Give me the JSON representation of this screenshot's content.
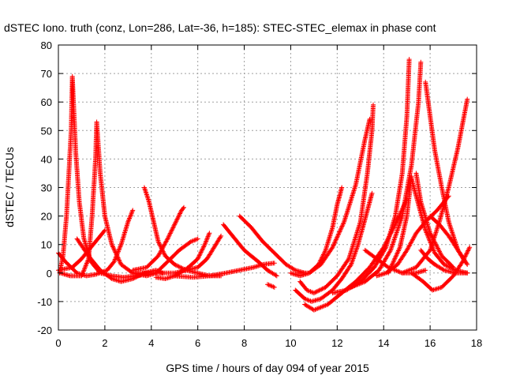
{
  "chart_data": {
    "type": "scatter",
    "title": "dSTEC Iono. truth (conz, Lon=286, Lat=-36, h=185): STEC-STEC_elemax in phase cont",
    "xlabel": "GPS time / hours of day 094 of year 2015",
    "ylabel": "dSTEC  / TECUs",
    "xlim": [
      0,
      18
    ],
    "ylim": [
      -20,
      80
    ],
    "xticks": [
      0,
      2,
      4,
      6,
      8,
      10,
      12,
      14,
      16,
      18
    ],
    "yticks": [
      -20,
      -10,
      0,
      10,
      20,
      30,
      40,
      50,
      60,
      70,
      80
    ],
    "grid": true,
    "marker": "+",
    "color": "#ff0000",
    "series": [
      {
        "points": [
          [
            0.0,
            7
          ],
          [
            0.3,
            4
          ],
          [
            0.8,
            0
          ],
          [
            1.2,
            -1
          ],
          [
            1.6,
            -0.5
          ],
          [
            2.1,
            1
          ],
          [
            2.4,
            4
          ],
          [
            2.7,
            10
          ],
          [
            3.0,
            18
          ],
          [
            3.2,
            22
          ]
        ]
      },
      {
        "points": [
          [
            0.05,
            0
          ],
          [
            0.2,
            6
          ],
          [
            0.35,
            20
          ],
          [
            0.45,
            35
          ],
          [
            0.55,
            50
          ],
          [
            0.6,
            69
          ],
          [
            0.65,
            60
          ],
          [
            0.75,
            42
          ],
          [
            0.9,
            25
          ],
          [
            1.1,
            12
          ],
          [
            1.4,
            4
          ],
          [
            1.8,
            0
          ],
          [
            2.3,
            -1
          ],
          [
            2.8,
            -1.5
          ],
          [
            3.3,
            -1
          ],
          [
            3.8,
            -0.5
          ]
        ]
      },
      {
        "points": [
          [
            0.1,
            0
          ],
          [
            0.5,
            -1
          ],
          [
            1.0,
            -1
          ],
          [
            1.3,
            5
          ],
          [
            1.45,
            20
          ],
          [
            1.6,
            40
          ],
          [
            1.65,
            53
          ],
          [
            1.8,
            35
          ],
          [
            2.0,
            20
          ],
          [
            2.3,
            10
          ],
          [
            2.7,
            3
          ],
          [
            3.2,
            0
          ],
          [
            3.8,
            -1
          ],
          [
            4.2,
            0
          ]
        ]
      },
      {
        "points": [
          [
            0.0,
            1
          ],
          [
            0.6,
            2
          ],
          [
            1.0,
            5
          ],
          [
            1.4,
            9
          ],
          [
            1.8,
            13
          ],
          [
            2.0,
            15
          ]
        ]
      },
      {
        "points": [
          [
            0.8,
            12
          ],
          [
            1.3,
            6
          ],
          [
            1.8,
            1
          ],
          [
            2.3,
            -2
          ],
          [
            2.7,
            -3
          ],
          [
            3.2,
            -2
          ],
          [
            3.7,
            0
          ],
          [
            4.2,
            1
          ],
          [
            4.5,
            0
          ]
        ]
      },
      {
        "points": [
          [
            3.7,
            30
          ],
          [
            3.9,
            25
          ],
          [
            4.1,
            18
          ],
          [
            4.3,
            11
          ],
          [
            4.6,
            6
          ],
          [
            5.0,
            3
          ],
          [
            5.5,
            1
          ],
          [
            6.0,
            0
          ],
          [
            6.5,
            -1
          ],
          [
            7.0,
            -1
          ]
        ]
      },
      {
        "points": [
          [
            3.2,
            1
          ],
          [
            3.8,
            2
          ],
          [
            4.3,
            6
          ],
          [
            4.7,
            12
          ],
          [
            5.0,
            17
          ],
          [
            5.3,
            22
          ],
          [
            5.4,
            23
          ]
        ]
      },
      {
        "points": [
          [
            3.3,
            0
          ],
          [
            4.2,
            0
          ],
          [
            4.7,
            4
          ],
          [
            5.2,
            8
          ],
          [
            5.7,
            11
          ],
          [
            6.0,
            12
          ]
        ]
      },
      {
        "points": [
          [
            6.5,
            14
          ],
          [
            6.3,
            10
          ],
          [
            6.0,
            5
          ],
          [
            5.6,
            2
          ],
          [
            5.0,
            -1
          ],
          [
            4.6,
            -2
          ],
          [
            4.2,
            -1.5
          ]
        ]
      },
      {
        "points": [
          [
            4.2,
            0
          ],
          [
            5.0,
            0
          ],
          [
            5.5,
            1
          ],
          [
            6.0,
            2
          ],
          [
            6.4,
            5
          ],
          [
            6.7,
            9
          ],
          [
            7.0,
            13
          ]
        ]
      },
      {
        "points": [
          [
            5.0,
            -1
          ],
          [
            5.8,
            -1.5
          ],
          [
            6.5,
            -1
          ],
          [
            7.2,
            0
          ],
          [
            7.8,
            1
          ],
          [
            8.4,
            2
          ],
          [
            8.8,
            3
          ],
          [
            9.3,
            3.5
          ]
        ]
      },
      {
        "points": [
          [
            7.1,
            17
          ],
          [
            7.5,
            13
          ],
          [
            8.0,
            8
          ],
          [
            8.6,
            4
          ],
          [
            9.0,
            1
          ],
          [
            9.4,
            -1
          ]
        ]
      },
      {
        "points": [
          [
            7.8,
            20
          ],
          [
            8.3,
            16
          ],
          [
            8.8,
            11
          ],
          [
            9.3,
            7
          ],
          [
            9.8,
            3
          ],
          [
            10.2,
            1
          ],
          [
            10.6,
            0
          ]
        ]
      },
      {
        "points": [
          [
            9.0,
            -4
          ],
          [
            9.3,
            -5
          ]
        ]
      },
      {
        "points": [
          [
            10.0,
            0
          ],
          [
            10.4,
            -1
          ],
          [
            10.8,
            0
          ],
          [
            11.2,
            3
          ],
          [
            11.5,
            8
          ],
          [
            11.8,
            16
          ],
          [
            12.0,
            24
          ],
          [
            12.2,
            30
          ]
        ]
      },
      {
        "points": [
          [
            10.2,
            -6
          ],
          [
            10.6,
            -9
          ],
          [
            10.9,
            -10
          ],
          [
            11.3,
            -9
          ],
          [
            11.8,
            -6
          ],
          [
            12.2,
            -2
          ],
          [
            12.6,
            3
          ],
          [
            12.9,
            10
          ],
          [
            13.2,
            19
          ],
          [
            13.5,
            28
          ]
        ]
      },
      {
        "points": [
          [
            10.4,
            -3
          ],
          [
            10.7,
            -6
          ],
          [
            11.0,
            -7
          ],
          [
            11.5,
            -5
          ],
          [
            12.0,
            -1
          ],
          [
            12.5,
            5
          ],
          [
            13.0,
            18
          ],
          [
            13.3,
            35
          ],
          [
            13.5,
            50
          ],
          [
            13.55,
            59
          ]
        ]
      },
      {
        "points": [
          [
            10.3,
            0
          ],
          [
            10.8,
            0
          ],
          [
            11.3,
            3
          ],
          [
            11.8,
            9
          ],
          [
            12.3,
            18
          ],
          [
            12.8,
            31
          ],
          [
            13.2,
            47
          ],
          [
            13.4,
            54
          ]
        ]
      },
      {
        "points": [
          [
            10.6,
            -11
          ],
          [
            11.0,
            -13
          ],
          [
            11.6,
            -11
          ],
          [
            12.2,
            -7
          ],
          [
            12.8,
            -3
          ],
          [
            13.4,
            2
          ],
          [
            14.0,
            9
          ],
          [
            14.5,
            17
          ],
          [
            15.0,
            26
          ]
        ]
      },
      {
        "points": [
          [
            11.8,
            -7
          ],
          [
            12.4,
            -6
          ],
          [
            13.0,
            -3
          ],
          [
            13.6,
            2
          ],
          [
            14.1,
            9
          ],
          [
            14.5,
            20
          ],
          [
            14.8,
            35
          ],
          [
            15.0,
            55
          ],
          [
            15.1,
            75
          ]
        ]
      },
      {
        "points": [
          [
            12.6,
            -5
          ],
          [
            13.2,
            -3
          ],
          [
            13.8,
            1
          ],
          [
            14.3,
            8
          ],
          [
            14.8,
            20
          ],
          [
            15.2,
            38
          ],
          [
            15.5,
            60
          ],
          [
            15.6,
            74
          ]
        ]
      },
      {
        "points": [
          [
            13.2,
            8
          ],
          [
            13.7,
            5
          ],
          [
            14.2,
            2
          ],
          [
            14.8,
            0
          ],
          [
            15.4,
            0
          ],
          [
            15.8,
            1
          ]
        ]
      },
      {
        "points": [
          [
            15.2,
            0
          ],
          [
            15.7,
            -3
          ],
          [
            16.1,
            -6
          ],
          [
            16.5,
            -5
          ],
          [
            17.0,
            -1
          ],
          [
            17.4,
            4
          ],
          [
            17.7,
            9
          ]
        ]
      },
      {
        "points": [
          [
            14.2,
            0
          ],
          [
            14.7,
            9
          ],
          [
            15.0,
            20
          ],
          [
            15.2,
            34
          ]
        ]
      },
      {
        "points": [
          [
            15.2,
            33
          ],
          [
            15.5,
            24
          ],
          [
            15.8,
            15
          ],
          [
            16.2,
            7
          ],
          [
            16.6,
            3
          ],
          [
            17.1,
            1
          ],
          [
            17.6,
            0
          ]
        ]
      },
      {
        "points": [
          [
            15.4,
            35
          ],
          [
            15.6,
            25
          ],
          [
            16.0,
            14
          ],
          [
            16.5,
            6
          ],
          [
            17.0,
            2
          ]
        ]
      },
      {
        "points": [
          [
            15.8,
            67
          ],
          [
            16.0,
            55
          ],
          [
            16.2,
            43
          ],
          [
            16.5,
            30
          ],
          [
            16.8,
            18
          ],
          [
            17.2,
            8
          ],
          [
            17.6,
            3
          ]
        ]
      },
      {
        "points": [
          [
            16.0,
            20
          ],
          [
            16.4,
            17
          ],
          [
            16.8,
            13
          ],
          [
            17.2,
            8
          ],
          [
            17.5,
            4
          ]
        ]
      },
      {
        "points": [
          [
            15.6,
            8
          ],
          [
            15.9,
            5
          ],
          [
            16.2,
            3
          ],
          [
            16.6,
            1
          ],
          [
            17.1,
            0
          ],
          [
            17.6,
            0
          ]
        ]
      },
      {
        "points": [
          [
            14.8,
            0
          ],
          [
            15.4,
            2
          ],
          [
            16.0,
            8
          ],
          [
            16.4,
            18
          ],
          [
            16.8,
            30
          ],
          [
            17.2,
            44
          ],
          [
            17.6,
            61
          ]
        ]
      },
      {
        "points": [
          [
            13.7,
            -1
          ],
          [
            14.1,
            0
          ],
          [
            14.6,
            3
          ],
          [
            15.0,
            8
          ],
          [
            15.4,
            14
          ],
          [
            15.8,
            18
          ],
          [
            16.3,
            22
          ],
          [
            16.8,
            27
          ]
        ]
      }
    ]
  }
}
